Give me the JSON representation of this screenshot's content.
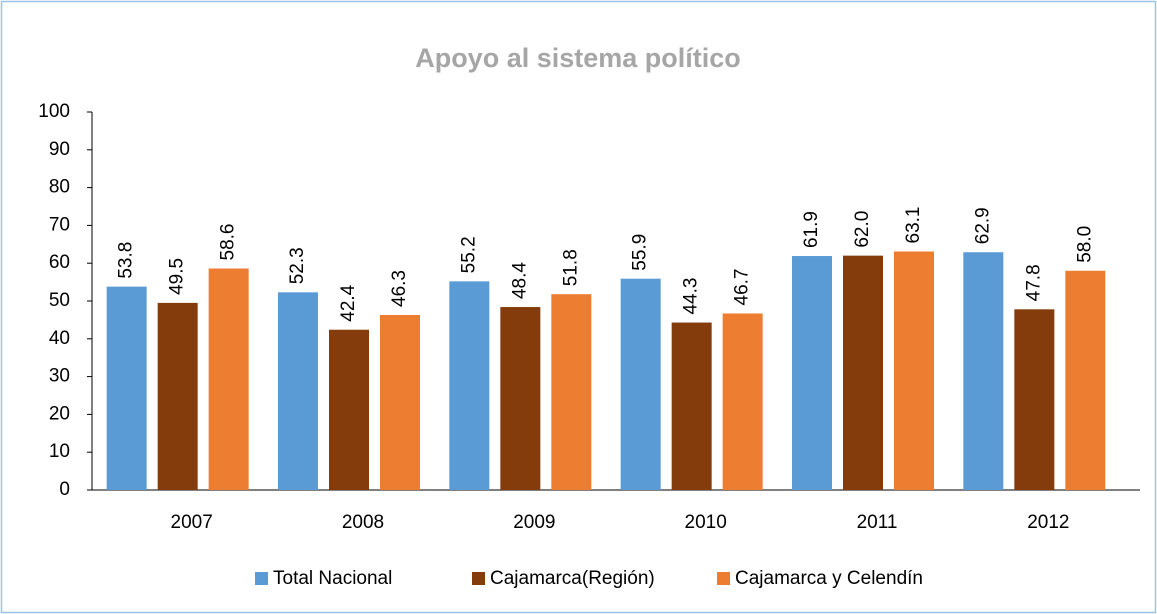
{
  "chart_data": {
    "type": "bar",
    "title": "Apoyo al sistema político",
    "categories": [
      "2007",
      "2008",
      "2009",
      "2010",
      "2011",
      "2012"
    ],
    "series": [
      {
        "name": "Total Nacional",
        "color": "#5b9bd5",
        "values": [
          53.8,
          52.3,
          55.2,
          55.9,
          61.9,
          62.9
        ],
        "value_labels": [
          "53.8",
          "52.3",
          "55.2",
          "55.9",
          "61.9",
          "62.9"
        ]
      },
      {
        "name": "Cajamarca(Región)",
        "color": "#843c0c",
        "values": [
          49.5,
          42.4,
          48.4,
          44.3,
          62.0,
          47.8
        ],
        "value_labels": [
          "49.5",
          "42.4",
          "48.4",
          "44.3",
          "62.0",
          "47.8"
        ]
      },
      {
        "name": "Cajamarca y Celendín",
        "color": "#ed7d31",
        "values": [
          58.6,
          46.3,
          51.8,
          46.7,
          63.1,
          58.0
        ],
        "value_labels": [
          "58.6",
          "46.3",
          "51.8",
          "46.7",
          "63.1",
          "58.0"
        ]
      }
    ],
    "ylim": [
      0,
      100
    ],
    "yticks": [
      0,
      10,
      20,
      30,
      40,
      50,
      60,
      70,
      80,
      90,
      100
    ],
    "grid": false,
    "legend": "bottom"
  }
}
